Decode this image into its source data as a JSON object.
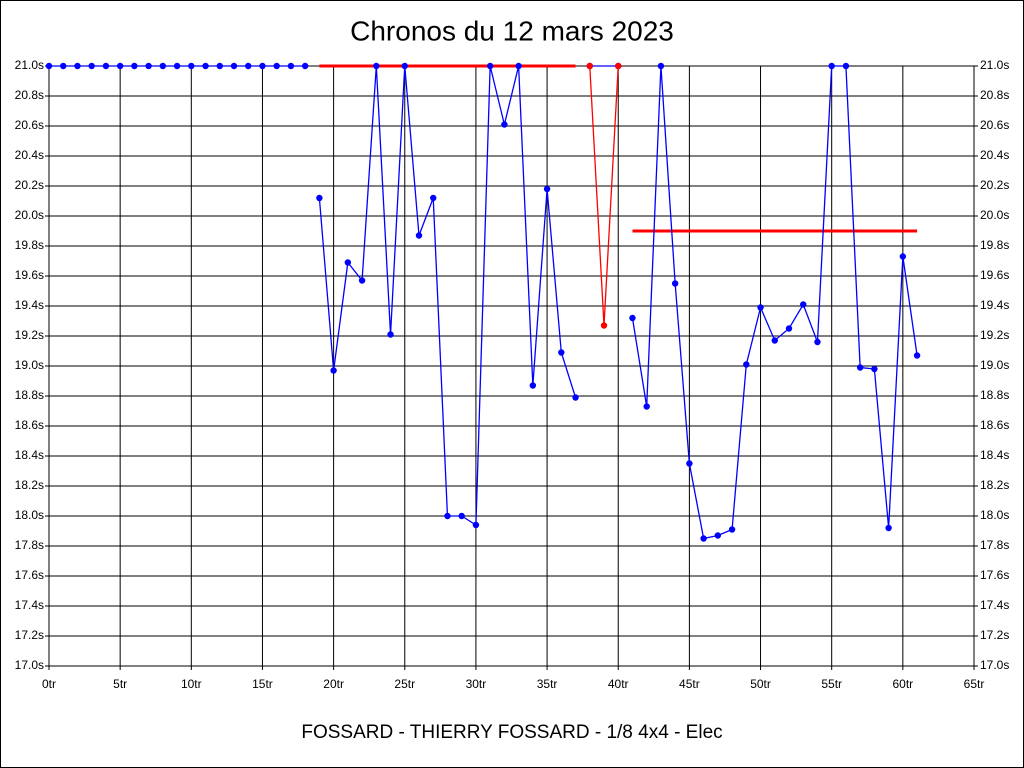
{
  "chart_data": {
    "type": "line",
    "title": "Chronos du 12 mars 2023",
    "subtitle": "FOSSARD - THIERRY FOSSARD - 1/8 4x4 - Elec",
    "xlim": [
      0,
      65
    ],
    "ylim": [
      17,
      21
    ],
    "grid": true,
    "xticks": [
      {
        "value": 0,
        "label": "0tr"
      },
      {
        "value": 5,
        "label": "5tr"
      },
      {
        "value": 10,
        "label": "10tr"
      },
      {
        "value": 15,
        "label": "15tr"
      },
      {
        "value": 20,
        "label": "20tr"
      },
      {
        "value": 25,
        "label": "25tr"
      },
      {
        "value": 30,
        "label": "30tr"
      },
      {
        "value": 35,
        "label": "35tr"
      },
      {
        "value": 40,
        "label": "40tr"
      },
      {
        "value": 45,
        "label": "45tr"
      },
      {
        "value": 50,
        "label": "50tr"
      },
      {
        "value": 55,
        "label": "55tr"
      },
      {
        "value": 60,
        "label": "60tr"
      },
      {
        "value": 65,
        "label": "65tr"
      }
    ],
    "yticks": [
      {
        "value": 17,
        "label": "17.0s"
      },
      {
        "value": 17.2,
        "label": "17.2s"
      },
      {
        "value": 17.4,
        "label": "17.4s"
      },
      {
        "value": 17.6,
        "label": "17.6s"
      },
      {
        "value": 17.8,
        "label": "17.8s"
      },
      {
        "value": 18,
        "label": "18.0s"
      },
      {
        "value": 18.2,
        "label": "18.2s"
      },
      {
        "value": 18.4,
        "label": "18.4s"
      },
      {
        "value": 18.6,
        "label": "18.6s"
      },
      {
        "value": 18.8,
        "label": "18.8s"
      },
      {
        "value": 19,
        "label": "19.0s"
      },
      {
        "value": 19.2,
        "label": "19.2s"
      },
      {
        "value": 19.4,
        "label": "19.4s"
      },
      {
        "value": 19.6,
        "label": "19.6s"
      },
      {
        "value": 19.8,
        "label": "19.8s"
      },
      {
        "value": 20,
        "label": "20.0s"
      },
      {
        "value": 20.2,
        "label": "20.2s"
      },
      {
        "value": 20.4,
        "label": "20.4s"
      },
      {
        "value": 20.6,
        "label": "20.6s"
      },
      {
        "value": 20.8,
        "label": "20.8s"
      },
      {
        "value": 21,
        "label": "21.0s"
      }
    ],
    "series": [
      {
        "color": "#ff0000",
        "markers": false,
        "x": [
          19,
          37
        ],
        "values": [
          21,
          21
        ]
      },
      {
        "color": "#ff0000",
        "markers": false,
        "x": [
          41,
          61
        ],
        "values": [
          19.9,
          19.9
        ]
      },
      {
        "color": "#0000ff",
        "markers": true,
        "x": [
          0,
          1,
          2,
          3,
          4,
          5,
          6,
          7,
          8,
          9,
          10,
          11,
          12,
          13,
          14,
          15,
          16,
          17,
          18
        ],
        "values": [
          21,
          21,
          21,
          21,
          21,
          21,
          21,
          21,
          21,
          21,
          21,
          21,
          21,
          21,
          21,
          21,
          21,
          21,
          21
        ]
      },
      {
        "color": "#0000ff",
        "markers": true,
        "x": [
          19,
          20,
          21,
          22,
          23,
          24,
          25,
          26,
          27,
          28,
          29,
          30,
          31,
          32,
          33,
          34,
          35,
          36,
          37
        ],
        "values": [
          20.12,
          18.97,
          19.69,
          19.57,
          21,
          19.21,
          21,
          19.87,
          20.12,
          18,
          18,
          17.94,
          21,
          20.61,
          21,
          18.87,
          20.18,
          19.09,
          18.79
        ]
      },
      {
        "color": "#0000ff",
        "markers": true,
        "x": [
          38,
          40
        ],
        "values": [
          21,
          21
        ]
      },
      {
        "color": "#ff0000",
        "markers": true,
        "x": [
          38,
          39,
          40
        ],
        "values": [
          21,
          19.27,
          21
        ]
      },
      {
        "color": "#0000ff",
        "markers": true,
        "x": [
          41,
          42,
          43,
          44,
          45,
          46,
          47,
          48,
          49,
          50,
          51,
          52,
          53,
          54,
          55,
          56,
          57,
          58,
          59,
          60,
          61
        ],
        "values": [
          19.32,
          18.73,
          21,
          19.55,
          18.35,
          17.85,
          17.87,
          17.91,
          19.01,
          19.39,
          19.17,
          19.25,
          19.41,
          19.16,
          21,
          21,
          18.99,
          18.98,
          17.92,
          19.73,
          19.07
        ]
      }
    ]
  }
}
